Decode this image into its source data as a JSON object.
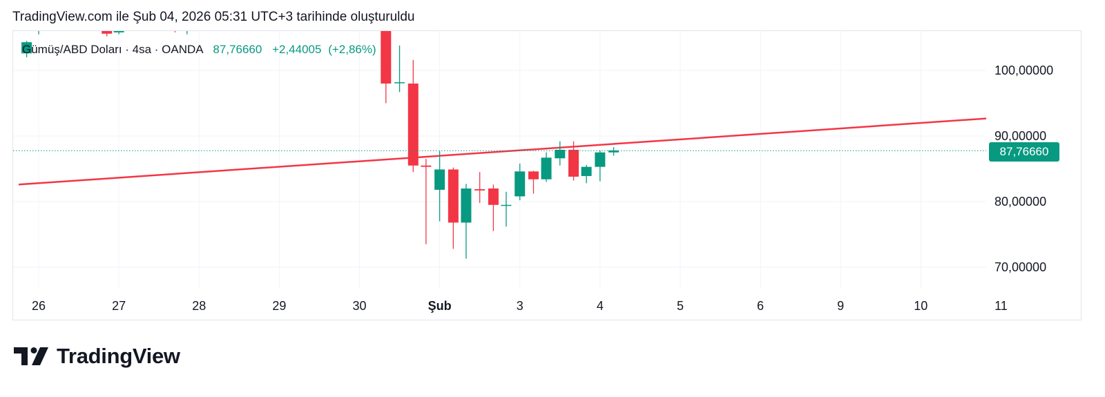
{
  "header": {
    "text": "TradingView.com ile Şub 04, 2026 05:31 UTC+3 tarihinde oluşturuldu"
  },
  "legend": {
    "symbol": "Gümüş/ABD Doları · 4sa · OANDA",
    "price": "87,76660",
    "change": "+2,44005",
    "change_pct": "(+2,86%)"
  },
  "last_price_label": "87,76660",
  "brand": {
    "name": "TradingView"
  },
  "colors": {
    "up": "#089981",
    "down": "#f23645",
    "trendline": "#f23645",
    "grid": "#f0f3fa",
    "text": "#131722"
  },
  "chart_data": {
    "type": "candlestick",
    "symbol": "Gümüş/ABD Doları",
    "interval": "4sa",
    "source": "OANDA",
    "last_price": 87.7666,
    "ylim": [
      64,
      107
    ],
    "y_ticks": [
      {
        "value": 100,
        "label": "100,00000"
      },
      {
        "value": 90,
        "label": "90,00000"
      },
      {
        "value": 80,
        "label": "80,00000"
      },
      {
        "value": 70,
        "label": "70,00000"
      }
    ],
    "x_range": [
      25.75,
      37.85
    ],
    "x_ticks": [
      {
        "x": 26,
        "label": "26",
        "bold": false
      },
      {
        "x": 27,
        "label": "27",
        "bold": false
      },
      {
        "x": 28,
        "label": "28",
        "bold": false
      },
      {
        "x": 29,
        "label": "29",
        "bold": false
      },
      {
        "x": 30,
        "label": "30",
        "bold": false
      },
      {
        "x": 31,
        "label": "Şub",
        "bold": true
      },
      {
        "x": 32,
        "label": "3",
        "bold": false
      },
      {
        "x": 33,
        "label": "4",
        "bold": false
      },
      {
        "x": 34,
        "label": "5",
        "bold": false
      },
      {
        "x": 35,
        "label": "6",
        "bold": false
      },
      {
        "x": 36,
        "label": "9",
        "bold": false
      },
      {
        "x": 37,
        "label": "10",
        "bold": false
      },
      {
        "x": 38,
        "label": "11",
        "bold": false
      }
    ],
    "candles": [
      {
        "x": 25.85,
        "open": 102.6,
        "high": 104.5,
        "low": 102.0,
        "close": 104.3
      },
      {
        "x": 26.0,
        "open": 106.0,
        "high": 108.0,
        "low": 105.5,
        "close": 107.5
      },
      {
        "x": 26.85,
        "open": 108.0,
        "high": 108.5,
        "low": 105.2,
        "close": 105.6
      },
      {
        "x": 27.0,
        "open": 105.8,
        "high": 108.0,
        "low": 105.5,
        "close": 107.4
      },
      {
        "x": 27.7,
        "open": 107.0,
        "high": 108.0,
        "low": 105.8,
        "close": 106.4
      },
      {
        "x": 27.85,
        "open": 106.2,
        "high": 108.0,
        "low": 105.5,
        "close": 106.6
      },
      {
        "x": 30.33,
        "open": 107.2,
        "high": 107.5,
        "low": 95.0,
        "close": 98.0
      },
      {
        "x": 30.5,
        "open": 98.1,
        "high": 103.8,
        "low": 96.7,
        "close": 98.2
      },
      {
        "x": 30.67,
        "open": 98.0,
        "high": 101.6,
        "low": 84.5,
        "close": 85.5
      },
      {
        "x": 30.83,
        "open": 85.5,
        "high": 86.5,
        "low": 73.5,
        "close": 85.3
      },
      {
        "x": 31.0,
        "open": 81.8,
        "high": 87.7,
        "low": 77.0,
        "close": 84.9
      },
      {
        "x": 31.17,
        "open": 84.9,
        "high": 85.2,
        "low": 72.8,
        "close": 76.8
      },
      {
        "x": 31.33,
        "open": 76.8,
        "high": 82.7,
        "low": 71.3,
        "close": 82.0
      },
      {
        "x": 31.5,
        "open": 81.9,
        "high": 84.5,
        "low": 79.8,
        "close": 81.7
      },
      {
        "x": 31.67,
        "open": 82.0,
        "high": 82.6,
        "low": 75.5,
        "close": 79.5
      },
      {
        "x": 31.83,
        "open": 79.4,
        "high": 81.5,
        "low": 76.2,
        "close": 79.5
      },
      {
        "x": 32.0,
        "open": 80.8,
        "high": 85.8,
        "low": 80.2,
        "close": 84.6
      },
      {
        "x": 32.17,
        "open": 84.6,
        "high": 84.7,
        "low": 81.2,
        "close": 83.4
      },
      {
        "x": 32.33,
        "open": 83.4,
        "high": 87.5,
        "low": 83.0,
        "close": 86.7
      },
      {
        "x": 32.5,
        "open": 86.6,
        "high": 89.2,
        "low": 85.5,
        "close": 87.9
      },
      {
        "x": 32.67,
        "open": 87.9,
        "high": 89.2,
        "low": 83.2,
        "close": 83.8
      },
      {
        "x": 32.83,
        "open": 83.9,
        "high": 85.6,
        "low": 82.8,
        "close": 85.3
      },
      {
        "x": 33.0,
        "open": 85.3,
        "high": 87.8,
        "low": 83.1,
        "close": 87.5
      },
      {
        "x": 33.17,
        "open": 87.5,
        "high": 88.3,
        "low": 87.0,
        "close": 87.8
      }
    ],
    "trendline": {
      "start": [
        25.75,
        82.6
      ],
      "end": [
        37.85,
        92.7
      ]
    }
  }
}
